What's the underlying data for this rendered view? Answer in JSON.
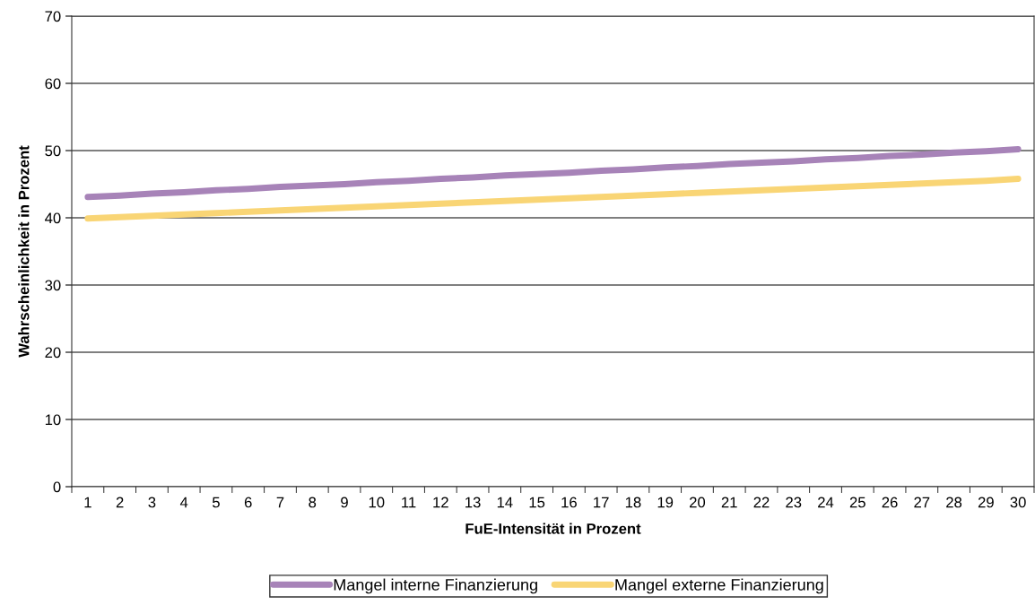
{
  "chart_data": {
    "type": "line",
    "xlabel": "FuE-Intensität in Prozent",
    "ylabel": "Wahrscheinlichkeit in Prozent",
    "categories": [
      "1",
      "2",
      "3",
      "4",
      "5",
      "6",
      "7",
      "8",
      "9",
      "10",
      "11",
      "12",
      "13",
      "14",
      "15",
      "16",
      "17",
      "18",
      "19",
      "20",
      "21",
      "22",
      "23",
      "24",
      "25",
      "26",
      "27",
      "28",
      "29",
      "30"
    ],
    "series": [
      {
        "name": "Mangel interne Finanzierung",
        "color": "#a783b8",
        "values": [
          43.1,
          43.3,
          43.6,
          43.8,
          44.1,
          44.3,
          44.6,
          44.8,
          45.0,
          45.3,
          45.5,
          45.8,
          46.0,
          46.3,
          46.5,
          46.7,
          47.0,
          47.2,
          47.5,
          47.7,
          48.0,
          48.2,
          48.4,
          48.7,
          48.9,
          49.2,
          49.4,
          49.7,
          49.9,
          50.2
        ]
      },
      {
        "name": "Mangel externe Finanzierung",
        "color": "#f9d575",
        "values": [
          39.9,
          40.1,
          40.3,
          40.5,
          40.7,
          40.9,
          41.1,
          41.3,
          41.5,
          41.7,
          41.9,
          42.1,
          42.3,
          42.5,
          42.7,
          42.9,
          43.1,
          43.3,
          43.5,
          43.7,
          43.9,
          44.1,
          44.3,
          44.5,
          44.7,
          44.9,
          45.1,
          45.3,
          45.5,
          45.8
        ]
      }
    ],
    "ylim": [
      0,
      70
    ],
    "yticks": [
      0,
      10,
      20,
      30,
      40,
      50,
      60,
      70
    ],
    "grid": "y",
    "legend": "bottom",
    "marker": "none",
    "line_style": "solid"
  }
}
